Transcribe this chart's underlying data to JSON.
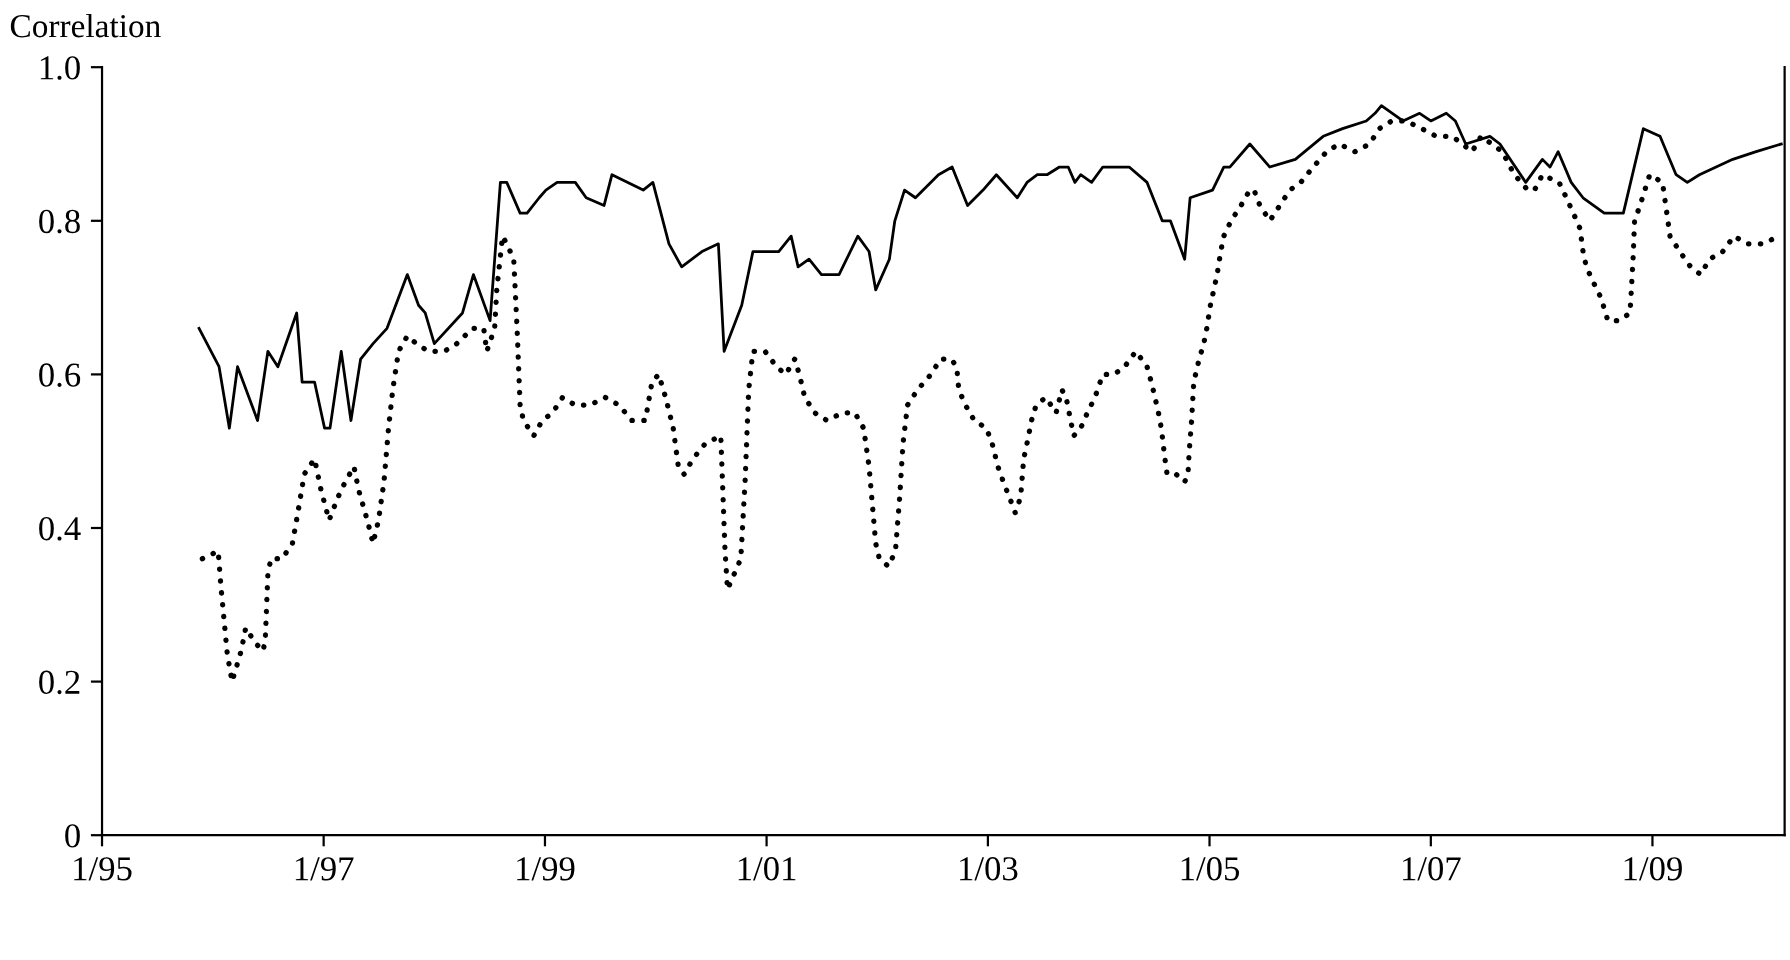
{
  "chart_data": {
    "type": "line",
    "ylabel": "Correlation",
    "xlim": [
      "1995-01-01",
      "2010-03-13"
    ],
    "ylim": [
      0,
      1
    ],
    "xticks": [
      {
        "value": "1995-01-01",
        "label": "1/95"
      },
      {
        "value": "1997-01-01",
        "label": "1/97"
      },
      {
        "value": "1999-01-01",
        "label": "1/99"
      },
      {
        "value": "2001-01-01",
        "label": "1/01"
      },
      {
        "value": "2003-01-01",
        "label": "1/03"
      },
      {
        "value": "2005-01-01",
        "label": "1/05"
      },
      {
        "value": "2007-01-01",
        "label": "1/07"
      },
      {
        "value": "2009-01-01",
        "label": "1/09"
      }
    ],
    "yticks": [
      0,
      0.2,
      0.4,
      0.6,
      0.8,
      {
        "value": 1,
        "label": "1.0"
      }
    ],
    "grid": false,
    "series": [
      {
        "color": "#000000",
        "line_style": "solid",
        "x": [
          "1995-11-17",
          "1996-01-22",
          "1996-02-25",
          "1996-03-23",
          "1996-05-28",
          "1996-07-01",
          "1996-08-03",
          "1996-10-04",
          "1996-10-22",
          "1996-12-02",
          "1997-01-04",
          "1997-01-22",
          "1997-02-28",
          "1997-04-01",
          "1997-05-03",
          "1997-06-13",
          "1997-07-29",
          "1997-10-04",
          "1997-11-10",
          "1997-12-02",
          "1998-01-01",
          "1998-04-04",
          "1998-05-10",
          "1998-07-04",
          "1998-08-07",
          "1998-08-28",
          "1998-10-11",
          "1998-11-03",
          "1998-12-13",
          "1999-01-04",
          "1999-02-10",
          "1999-04-11",
          "1999-05-17",
          "1999-07-15",
          "1999-08-10",
          "1999-11-21",
          "1999-12-23",
          "2000-02-14",
          "2000-03-27",
          "2000-06-02",
          "2000-07-26",
          "2000-08-14",
          "2000-10-11",
          "2000-11-17",
          "2001-02-10",
          "2001-03-23",
          "2001-04-15",
          "2001-05-21",
          "2001-07-01",
          "2001-08-28",
          "2001-10-29",
          "2001-12-05",
          "2001-12-27",
          "2002-02-10",
          "2002-02-28",
          "2002-04-01",
          "2002-05-07",
          "2002-07-22",
          "2002-09-05",
          "2002-10-26",
          "2002-12-16",
          "2003-01-29",
          "2003-04-08",
          "2003-05-10",
          "2003-06-13",
          "2003-07-15",
          "2003-08-25",
          "2003-09-23",
          "2003-10-15",
          "2003-11-03",
          "2003-12-09",
          "2004-01-15",
          "2004-04-11",
          "2004-06-09",
          "2004-07-29",
          "2004-08-25",
          "2004-10-11",
          "2004-10-29",
          "2005-01-11",
          "2005-02-17",
          "2005-03-09",
          "2005-05-14",
          "2005-07-19",
          "2005-10-11",
          "2006-01-11",
          "2006-03-16",
          "2006-06-02",
          "2006-07-01",
          "2006-07-22",
          "2006-10-01",
          "2006-11-25",
          "2007-01-01",
          "2007-02-21",
          "2007-03-23",
          "2007-04-26",
          "2007-07-15",
          "2007-08-17",
          "2007-11-10",
          "2008-01-04",
          "2008-01-29",
          "2008-02-25",
          "2008-04-08",
          "2008-05-17",
          "2008-07-26",
          "2008-09-27",
          "2008-12-02",
          "2009-01-26",
          "2009-03-20",
          "2009-04-26",
          "2009-06-05",
          "2009-09-23",
          "2009-12-09",
          "2010-03-02"
        ],
        "values": [
          0.66,
          0.61,
          0.53,
          0.61,
          0.54,
          0.63,
          0.61,
          0.68,
          0.59,
          0.59,
          0.53,
          0.53,
          0.63,
          0.54,
          0.62,
          0.64,
          0.66,
          0.73,
          0.69,
          0.68,
          0.64,
          0.68,
          0.73,
          0.67,
          0.85,
          0.85,
          0.81,
          0.81,
          0.83,
          0.84,
          0.85,
          0.85,
          0.83,
          0.82,
          0.86,
          0.84,
          0.85,
          0.77,
          0.74,
          0.76,
          0.77,
          0.63,
          0.69,
          0.76,
          0.76,
          0.78,
          0.74,
          0.75,
          0.73,
          0.73,
          0.78,
          0.76,
          0.71,
          0.75,
          0.8,
          0.84,
          0.83,
          0.86,
          0.87,
          0.82,
          0.84,
          0.86,
          0.83,
          0.85,
          0.86,
          0.86,
          0.87,
          0.87,
          0.85,
          0.86,
          0.85,
          0.87,
          0.87,
          0.85,
          0.8,
          0.8,
          0.75,
          0.83,
          0.84,
          0.87,
          0.87,
          0.9,
          0.87,
          0.88,
          0.91,
          0.92,
          0.93,
          0.94,
          0.95,
          0.93,
          0.94,
          0.93,
          0.94,
          0.93,
          0.9,
          0.91,
          0.9,
          0.85,
          0.88,
          0.87,
          0.89,
          0.85,
          0.83,
          0.81,
          0.81,
          0.92,
          0.91,
          0.86,
          0.85,
          0.86,
          0.88,
          0.89,
          0.9
        ]
      },
      {
        "color": "#000000",
        "line_style": "dotted",
        "x": [
          "1995-11-28",
          "1996-01-19",
          "1996-01-29",
          "1996-02-10",
          "1996-02-17",
          "1996-02-25",
          "1996-03-05",
          "1996-03-20",
          "1996-04-04",
          "1996-04-19",
          "1996-05-21",
          "1996-06-16",
          "1996-06-23",
          "1996-07-01",
          "1996-07-11",
          "1996-08-17",
          "1996-09-20",
          "1996-10-08",
          "1996-10-29",
          "1996-12-02",
          "1996-12-23",
          "1997-01-19",
          "1997-02-17",
          "1997-03-13",
          "1997-04-11",
          "1997-04-26",
          "1997-05-25",
          "1997-06-13",
          "1997-07-01",
          "1997-07-19",
          "1997-08-03",
          "1997-08-17",
          "1997-09-05",
          "1997-10-04",
          "1997-11-03",
          "1997-12-13",
          "1998-02-03",
          "1998-03-16",
          "1998-05-07",
          "1998-06-13",
          "1998-06-23",
          "1998-07-19",
          "1998-07-26",
          "1998-08-14",
          "1998-08-28",
          "1998-09-20",
          "1998-10-01",
          "1998-10-11",
          "1998-10-22",
          "1998-11-25",
          "1998-12-23",
          "1999-01-26",
          "1999-02-28",
          "1999-04-11",
          "1999-05-28",
          "1999-07-19",
          "1999-09-02",
          "1999-10-15",
          "1999-11-28",
          "1999-12-20",
          "2000-01-11",
          "2000-02-03",
          "2000-02-28",
          "2000-03-16",
          "2000-04-04",
          "2000-05-03",
          "2000-06-13",
          "2000-08-03",
          "2000-08-17",
          "2000-08-25",
          "2000-09-16",
          "2000-10-08",
          "2000-10-22",
          "2000-11-03",
          "2000-11-17",
          "2000-12-27",
          "2001-02-03",
          "2001-03-05",
          "2001-04-04",
          "2001-04-19",
          "2001-05-07",
          "2001-06-09",
          "2001-07-19",
          "2001-09-09",
          "2001-10-19",
          "2001-11-17",
          "2001-12-05",
          "2001-12-16",
          "2001-12-27",
          "2002-01-08",
          "2002-02-07",
          "2002-03-02",
          "2002-03-16",
          "2002-03-27",
          "2002-04-11",
          "2002-05-14",
          "2002-06-27",
          "2002-07-29",
          "2002-09-02",
          "2002-09-20",
          "2002-09-27",
          "2002-10-19",
          "2002-11-17",
          "2002-12-27",
          "2003-01-15",
          "2003-02-03",
          "2003-02-21",
          "2003-03-13",
          "2003-04-01",
          "2003-04-19",
          "2003-04-29",
          "2003-05-10",
          "2003-05-25",
          "2003-06-09",
          "2003-07-11",
          "2003-08-14",
          "2003-09-02",
          "2003-09-16",
          "2003-10-01",
          "2003-10-11",
          "2003-11-03",
          "2003-11-25",
          "2003-12-20",
          "2004-01-15",
          "2004-02-21",
          "2004-03-27",
          "2004-05-03",
          "2004-06-09",
          "2004-06-23",
          "2004-07-11",
          "2004-07-22",
          "2004-07-29",
          "2004-08-07",
          "2004-08-14",
          "2004-09-13",
          "2004-10-11",
          "2004-10-22",
          "2004-10-26",
          "2004-11-03",
          "2004-11-10",
          "2004-11-28",
          "2004-12-13",
          "2004-12-23",
          "2005-01-04",
          "2005-01-15",
          "2005-01-26",
          "2005-02-07",
          "2005-02-17",
          "2005-03-13",
          "2005-04-15",
          "2005-05-14",
          "2005-05-28",
          "2005-06-16",
          "2005-07-19",
          "2005-08-21",
          "2005-09-23",
          "2005-10-29",
          "2005-12-09",
          "2006-01-22",
          "2006-03-05",
          "2006-04-26",
          "2006-06-13",
          "2006-07-15",
          "2006-08-25",
          "2006-10-11",
          "2006-12-02",
          "2007-01-19",
          "2007-03-13",
          "2007-05-17",
          "2007-06-16",
          "2007-08-25",
          "2007-09-20",
          "2007-10-04",
          "2007-11-17",
          "2007-12-09",
          "2008-01-04",
          "2008-02-28",
          "2008-03-23",
          "2008-04-15",
          "2008-05-07",
          "2008-05-17",
          "2008-05-28",
          "2008-06-20",
          "2008-07-15",
          "2008-08-07",
          "2008-09-13",
          "2008-10-19",
          "2008-10-22",
          "2008-10-29",
          "2008-11-03",
          "2008-11-21",
          "2008-12-23",
          "2009-02-03",
          "2009-02-21",
          "2009-02-28",
          "2009-04-01",
          "2009-05-07",
          "2009-06-09",
          "2009-07-08",
          "2009-08-21",
          "2009-09-27",
          "2009-11-10",
          "2010-01-01",
          "2010-02-21"
        ],
        "values": [
          0.36,
          0.37,
          0.32,
          0.27,
          0.24,
          0.22,
          0.2,
          0.22,
          0.24,
          0.27,
          0.25,
          0.24,
          0.26,
          0.34,
          0.36,
          0.36,
          0.38,
          0.42,
          0.47,
          0.49,
          0.45,
          0.41,
          0.44,
          0.46,
          0.48,
          0.45,
          0.41,
          0.38,
          0.41,
          0.46,
          0.53,
          0.58,
          0.63,
          0.65,
          0.64,
          0.63,
          0.63,
          0.64,
          0.66,
          0.66,
          0.63,
          0.66,
          0.71,
          0.78,
          0.77,
          0.75,
          0.66,
          0.56,
          0.54,
          0.52,
          0.54,
          0.55,
          0.57,
          0.56,
          0.56,
          0.57,
          0.56,
          0.54,
          0.54,
          0.59,
          0.6,
          0.57,
          0.53,
          0.48,
          0.47,
          0.49,
          0.51,
          0.52,
          0.37,
          0.32,
          0.34,
          0.36,
          0.46,
          0.58,
          0.63,
          0.63,
          0.61,
          0.6,
          0.62,
          0.6,
          0.57,
          0.55,
          0.54,
          0.55,
          0.55,
          0.53,
          0.48,
          0.43,
          0.38,
          0.36,
          0.35,
          0.37,
          0.44,
          0.51,
          0.56,
          0.58,
          0.6,
          0.62,
          0.62,
          0.61,
          0.58,
          0.56,
          0.54,
          0.53,
          0.51,
          0.48,
          0.46,
          0.44,
          0.42,
          0.44,
          0.49,
          0.51,
          0.54,
          0.56,
          0.57,
          0.55,
          0.58,
          0.57,
          0.54,
          0.52,
          0.53,
          0.55,
          0.57,
          0.6,
          0.6,
          0.61,
          0.63,
          0.61,
          0.59,
          0.56,
          0.54,
          0.52,
          0.49,
          0.47,
          0.47,
          0.46,
          0.47,
          0.5,
          0.54,
          0.59,
          0.62,
          0.64,
          0.66,
          0.69,
          0.71,
          0.73,
          0.76,
          0.78,
          0.8,
          0.82,
          0.84,
          0.84,
          0.82,
          0.8,
          0.82,
          0.84,
          0.85,
          0.87,
          0.89,
          0.9,
          0.89,
          0.9,
          0.92,
          0.93,
          0.93,
          0.92,
          0.91,
          0.91,
          0.89,
          0.91,
          0.89,
          0.87,
          0.86,
          0.84,
          0.84,
          0.86,
          0.85,
          0.83,
          0.81,
          0.79,
          0.76,
          0.74,
          0.72,
          0.7,
          0.67,
          0.67,
          0.68,
          0.7,
          0.75,
          0.8,
          0.82,
          0.86,
          0.85,
          0.8,
          0.78,
          0.76,
          0.74,
          0.73,
          0.75,
          0.76,
          0.78,
          0.77,
          0.77,
          0.78
        ]
      }
    ]
  }
}
